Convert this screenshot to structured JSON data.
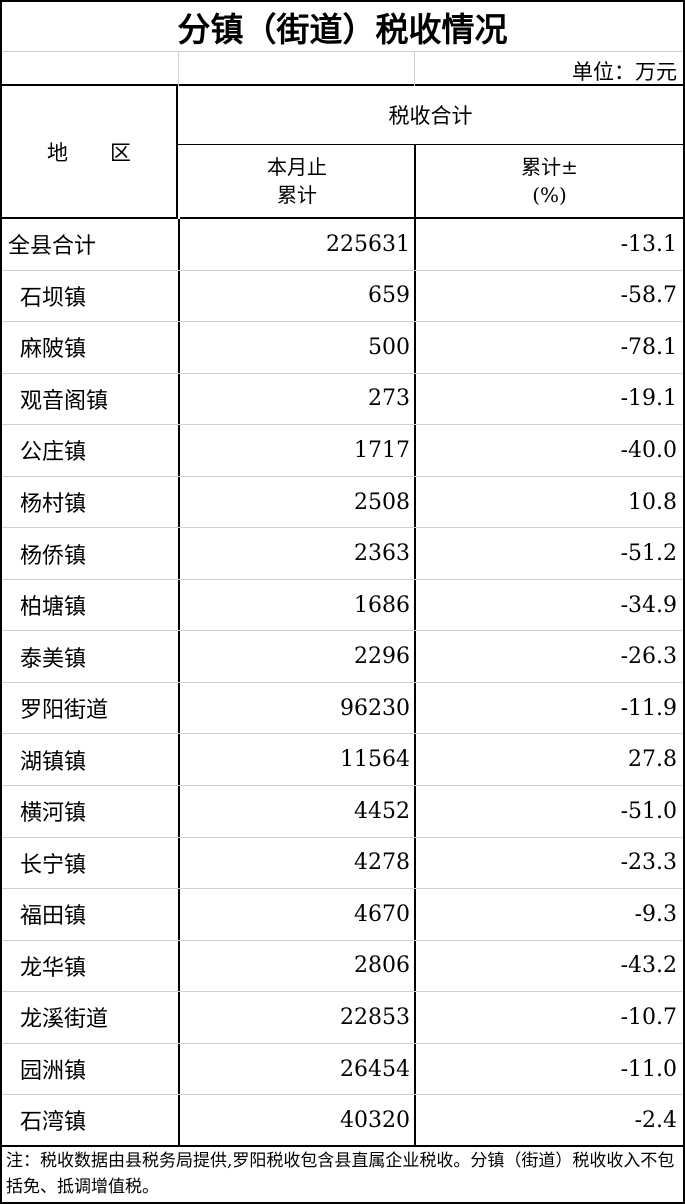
{
  "title": "分镇（街道）税收情况",
  "unit": "单位：万元",
  "header": {
    "region": "地　　区",
    "group": "税收合计",
    "col1_line1": "本月止",
    "col1_line2": "累计",
    "col2_line1": "累计±",
    "col2_line2": "(%)"
  },
  "rows": [
    {
      "name": "全县合计",
      "value": "225631",
      "pct": "-13.1"
    },
    {
      "name": "石坝镇",
      "value": "659",
      "pct": "-58.7"
    },
    {
      "name": "麻陂镇",
      "value": "500",
      "pct": "-78.1"
    },
    {
      "name": "观音阁镇",
      "value": "273",
      "pct": "-19.1"
    },
    {
      "name": "公庄镇",
      "value": "1717",
      "pct": "-40.0"
    },
    {
      "name": "杨村镇",
      "value": "2508",
      "pct": "10.8"
    },
    {
      "name": "杨侨镇",
      "value": "2363",
      "pct": "-51.2"
    },
    {
      "name": "柏塘镇",
      "value": "1686",
      "pct": "-34.9"
    },
    {
      "name": "泰美镇",
      "value": "2296",
      "pct": "-26.3"
    },
    {
      "name": "罗阳街道",
      "value": "96230",
      "pct": "-11.9"
    },
    {
      "name": "湖镇镇",
      "value": "11564",
      "pct": "27.8"
    },
    {
      "name": "横河镇",
      "value": "4452",
      "pct": "-51.0"
    },
    {
      "name": "长宁镇",
      "value": "4278",
      "pct": "-23.3"
    },
    {
      "name": "福田镇",
      "value": "4670",
      "pct": "-9.3"
    },
    {
      "name": "龙华镇",
      "value": "2806",
      "pct": "-43.2"
    },
    {
      "name": "龙溪街道",
      "value": "22853",
      "pct": "-10.7"
    },
    {
      "name": "园洲镇",
      "value": "26454",
      "pct": "-11.0"
    },
    {
      "name": "石湾镇",
      "value": "40320",
      "pct": "-2.4"
    }
  ],
  "note": "注：税收数据由县税务局提供,罗阳税收包含县直属企业税收。分镇（街道）税收收入不包括免、抵调增值税。"
}
